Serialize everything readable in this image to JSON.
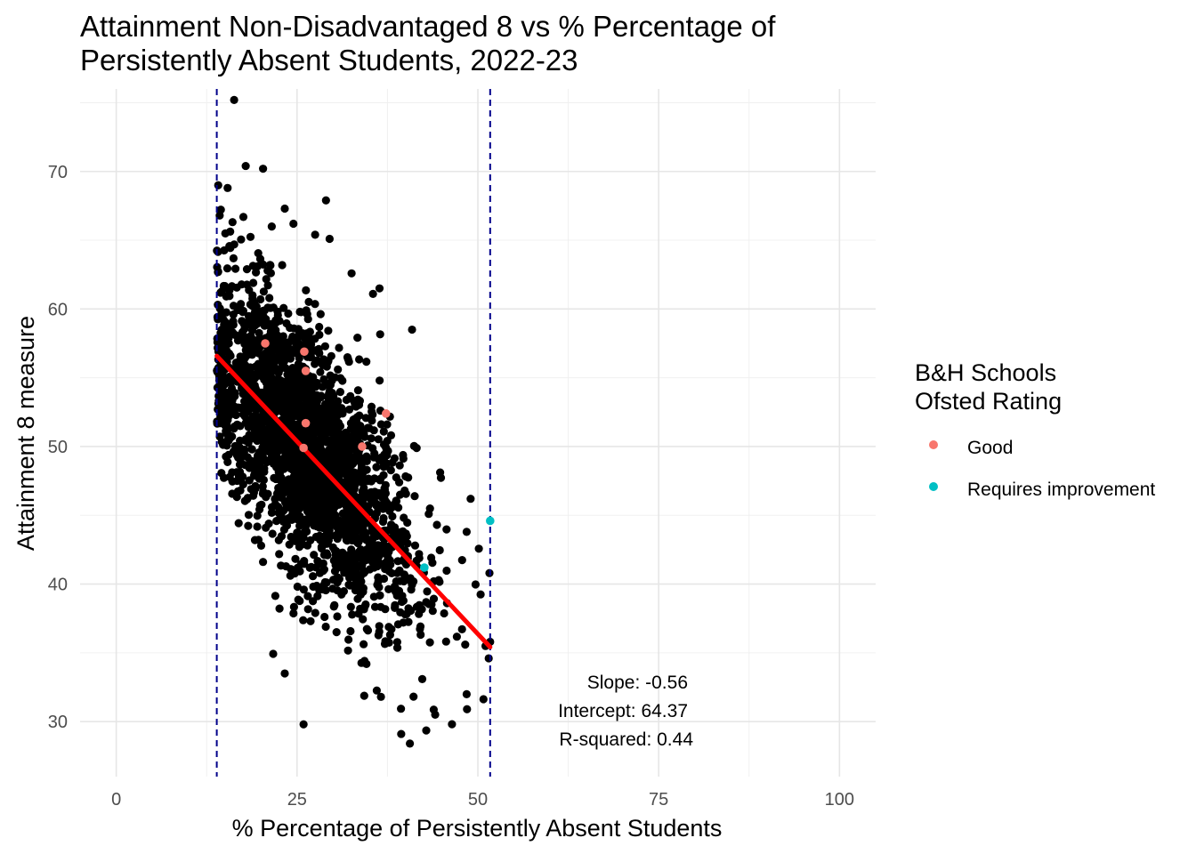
{
  "chart_data": {
    "type": "scatter",
    "title_lines": [
      "Attainment Non-Disadvantaged 8 vs % Percentage of",
      "Persistently Absent Students, 2022-23"
    ],
    "xlabel": "% Percentage of Persistently Absent Students",
    "ylabel": "Attainment 8 measure",
    "xlim": [
      -5,
      105
    ],
    "ylim": [
      26,
      76
    ],
    "x_ticks": [
      0,
      25,
      50,
      75,
      100
    ],
    "x_tick_labels": [
      "0",
      "25",
      "50",
      "75",
      "100"
    ],
    "y_ticks": [
      30,
      40,
      50,
      60,
      70
    ],
    "y_tick_labels": [
      "30",
      "40",
      "50",
      "60",
      "70"
    ],
    "grid": true,
    "vlines": [
      13.9,
      51.7
    ],
    "vline_color": "#00008b",
    "background_point_color": "#000000",
    "background_series": {
      "name": "",
      "summary": "approx. 2,500 schools; x from 13.9 to 51.7, y roughly 28 to 75, strong negative trend",
      "notable_points": [
        {
          "x": 16.3,
          "y": 75.2
        },
        {
          "x": 17.9,
          "y": 70.4
        },
        {
          "x": 20.3,
          "y": 70.2
        },
        {
          "x": 14.1,
          "y": 69.0
        },
        {
          "x": 15.4,
          "y": 68.8
        },
        {
          "x": 29.0,
          "y": 67.9
        },
        {
          "x": 23.3,
          "y": 67.3
        },
        {
          "x": 21.5,
          "y": 66.0
        },
        {
          "x": 14.3,
          "y": 66.8
        },
        {
          "x": 24.5,
          "y": 66.2
        },
        {
          "x": 27.5,
          "y": 65.4
        },
        {
          "x": 29.5,
          "y": 65.1
        },
        {
          "x": 36.4,
          "y": 61.5
        },
        {
          "x": 35.5,
          "y": 61.1
        },
        {
          "x": 40.9,
          "y": 58.5
        },
        {
          "x": 49.0,
          "y": 46.2
        },
        {
          "x": 51.6,
          "y": 40.8
        },
        {
          "x": 51.7,
          "y": 35.8
        },
        {
          "x": 51.5,
          "y": 34.6
        },
        {
          "x": 48.5,
          "y": 30.9
        },
        {
          "x": 44.1,
          "y": 30.5
        },
        {
          "x": 39.4,
          "y": 29.1
        },
        {
          "x": 40.6,
          "y": 28.4
        },
        {
          "x": 25.9,
          "y": 29.8
        },
        {
          "x": 23.3,
          "y": 33.5
        },
        {
          "x": 36.6,
          "y": 31.8
        }
      ]
    },
    "series": [
      {
        "name": "Good",
        "color": "#f8766d",
        "points": [
          {
            "x": 20.6,
            "y": 57.5
          },
          {
            "x": 26.0,
            "y": 56.9
          },
          {
            "x": 26.2,
            "y": 55.5
          },
          {
            "x": 26.2,
            "y": 51.7
          },
          {
            "x": 37.3,
            "y": 52.4
          },
          {
            "x": 34.0,
            "y": 50.0
          },
          {
            "x": 25.9,
            "y": 49.9
          }
        ]
      },
      {
        "name": "Requires improvement",
        "color": "#00bfc4",
        "points": [
          {
            "x": 51.7,
            "y": 44.6
          },
          {
            "x": 42.6,
            "y": 41.2
          }
        ]
      }
    ],
    "regression": {
      "slope": -0.56,
      "intercept": 64.37,
      "r_squared": 0.44,
      "x_from": 13.9,
      "x_to": 51.7,
      "color": "#ff0000"
    },
    "annotations": [
      "Slope: -0.56",
      "Intercept: 64.37",
      "R-squared: 0.44"
    ],
    "legend": {
      "title_lines": [
        "B&H Schools",
        "Ofsted Rating"
      ],
      "position": "right",
      "entries": [
        "Good",
        "Requires improvement"
      ]
    }
  }
}
